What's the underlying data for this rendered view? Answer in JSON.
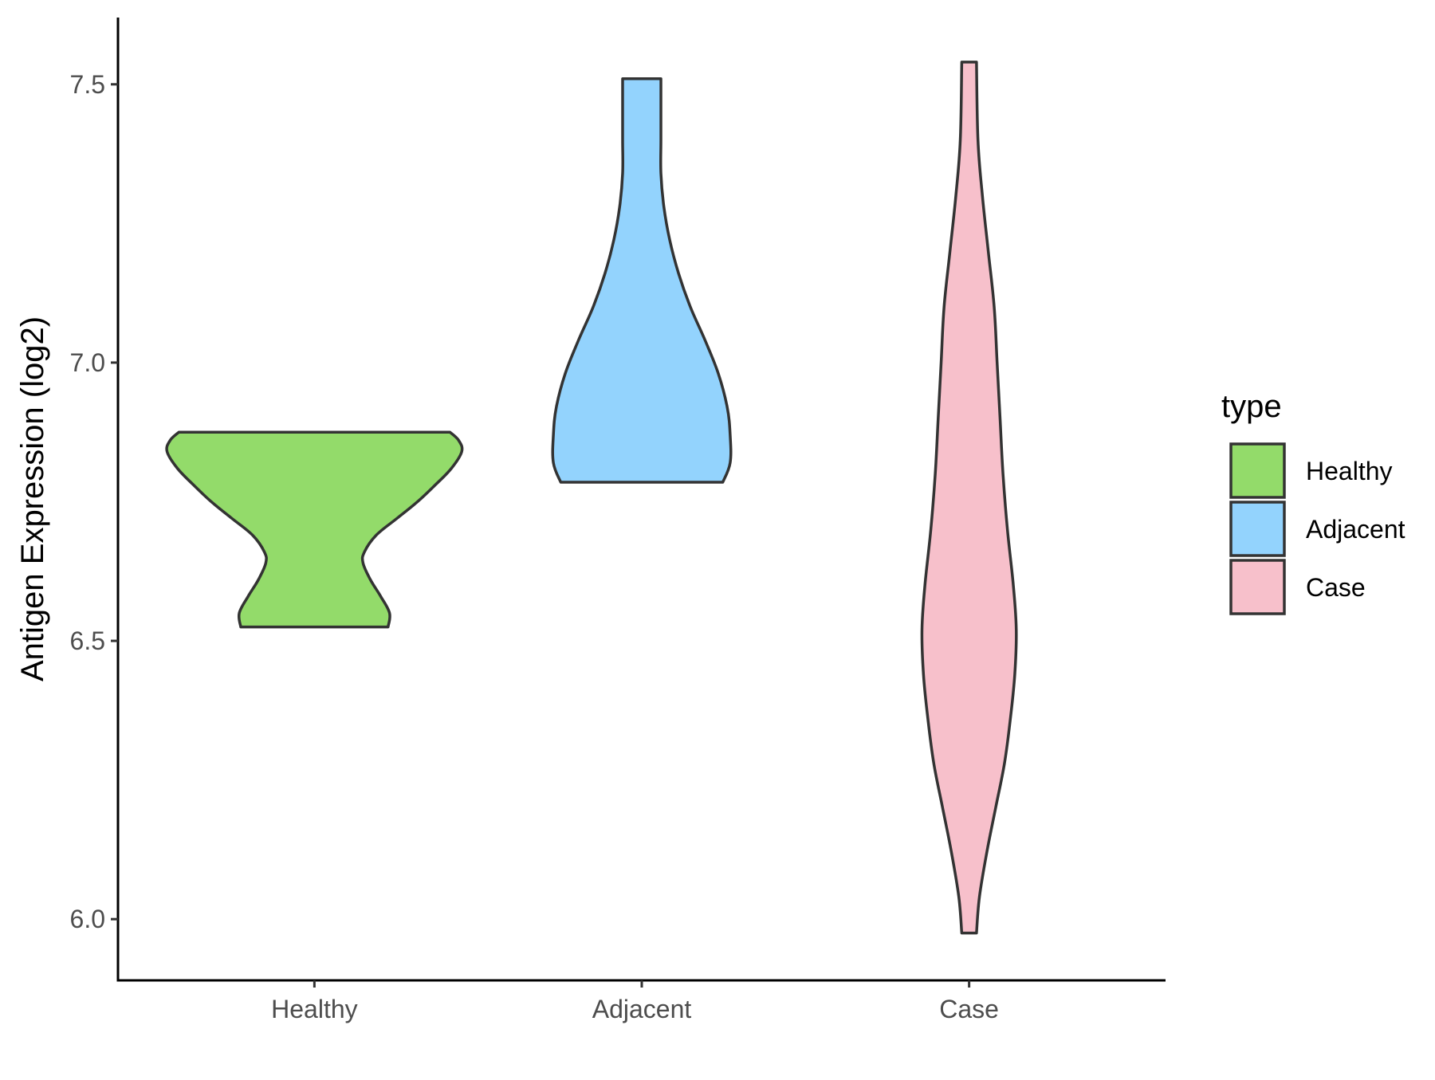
{
  "chart_data": {
    "type": "violin",
    "title": "",
    "xlabel": "",
    "ylabel": "Antigen Expression (log2)",
    "ylim": [
      5.89,
      7.62
    ],
    "yticks": [
      "6.0",
      "6.5",
      "7.0",
      "7.5"
    ],
    "yticks_values": [
      6.0,
      6.5,
      7.0,
      7.5
    ],
    "categories": [
      "Healthy",
      "Adjacent",
      "Case"
    ],
    "grid": false,
    "legend": {
      "title": "type",
      "position": "right",
      "entries": [
        "Healthy",
        "Adjacent",
        "Case"
      ]
    },
    "colors": {
      "Healthy": "#93db6a",
      "Adjacent": "#93d3fd",
      "Case": "#f7c0cb",
      "outline": "#333333"
    },
    "series": [
      {
        "category": "Healthy",
        "min": 6.525,
        "max": 6.875,
        "density": [
          [
            6.525,
            0.5
          ],
          [
            6.55,
            0.51
          ],
          [
            6.58,
            0.45
          ],
          [
            6.61,
            0.38
          ],
          [
            6.64,
            0.33
          ],
          [
            6.66,
            0.34
          ],
          [
            6.69,
            0.42
          ],
          [
            6.72,
            0.56
          ],
          [
            6.75,
            0.7
          ],
          [
            6.78,
            0.82
          ],
          [
            6.81,
            0.93
          ],
          [
            6.84,
            1.0
          ],
          [
            6.86,
            0.98
          ],
          [
            6.875,
            0.92
          ]
        ]
      },
      {
        "category": "Adjacent",
        "min": 6.785,
        "max": 7.51,
        "density": [
          [
            6.785,
            0.55
          ],
          [
            6.82,
            0.6
          ],
          [
            6.87,
            0.6
          ],
          [
            6.92,
            0.58
          ],
          [
            6.98,
            0.52
          ],
          [
            7.04,
            0.43
          ],
          [
            7.1,
            0.33
          ],
          [
            7.16,
            0.25
          ],
          [
            7.22,
            0.19
          ],
          [
            7.28,
            0.15
          ],
          [
            7.34,
            0.13
          ],
          [
            7.4,
            0.13
          ],
          [
            7.46,
            0.13
          ],
          [
            7.51,
            0.13
          ]
        ]
      },
      {
        "category": "Case",
        "min": 5.975,
        "max": 7.54,
        "density": [
          [
            5.975,
            0.05
          ],
          [
            6.04,
            0.07
          ],
          [
            6.12,
            0.12
          ],
          [
            6.2,
            0.18
          ],
          [
            6.28,
            0.24
          ],
          [
            6.36,
            0.28
          ],
          [
            6.44,
            0.31
          ],
          [
            6.52,
            0.32
          ],
          [
            6.6,
            0.3
          ],
          [
            6.7,
            0.26
          ],
          [
            6.8,
            0.23
          ],
          [
            6.9,
            0.21
          ],
          [
            7.0,
            0.19
          ],
          [
            7.1,
            0.17
          ],
          [
            7.2,
            0.13
          ],
          [
            7.3,
            0.09
          ],
          [
            7.4,
            0.06
          ],
          [
            7.54,
            0.05
          ]
        ]
      }
    ]
  }
}
